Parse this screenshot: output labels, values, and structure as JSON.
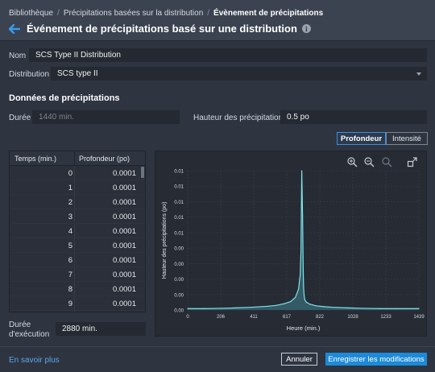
{
  "breadcrumb": {
    "items": [
      "Bibliothèque",
      "Précipitations basées sur la distribution"
    ],
    "current": "Évènement de précipitations"
  },
  "header": {
    "title": "Événement de précipitations basé sur une distribution"
  },
  "form": {
    "name_label": "Nom",
    "name_value": "SCS Type II Distribution",
    "distribution_label": "Distribution",
    "distribution_value": "SCS type II"
  },
  "section": {
    "title": "Données de précipitations"
  },
  "duration": {
    "label": "Durée",
    "value": "1440 min."
  },
  "depth": {
    "label": "Hauteur des précipitations",
    "value": "0.5 po"
  },
  "toggle": {
    "depth": "Profondeur",
    "intensity": "Intensité"
  },
  "table": {
    "headers": [
      "Temps (min.)",
      "Profondeur (po)"
    ],
    "rows": [
      [
        "0",
        "0.0001"
      ],
      [
        "1",
        "0.0001"
      ],
      [
        "2",
        "0.0001"
      ],
      [
        "3",
        "0.0001"
      ],
      [
        "4",
        "0.0001"
      ],
      [
        "5",
        "0.0001"
      ],
      [
        "6",
        "0.0001"
      ],
      [
        "7",
        "0.0001"
      ],
      [
        "8",
        "0.0001"
      ],
      [
        "9",
        "0.0001"
      ]
    ]
  },
  "execution": {
    "label_line1": "Durée",
    "label_line2": "d'exécution",
    "value": "2880 min."
  },
  "chart_data": {
    "type": "area",
    "xlabel": "Heure (min.)",
    "ylabel": "Hauteur des précipitations (po)",
    "xlim": [
      0,
      1439
    ],
    "ylim": [
      0,
      0.01
    ],
    "x_ticks": [
      "0",
      "206",
      "411",
      "617",
      "822",
      "1028",
      "1233",
      "1439"
    ],
    "y_ticks": [
      "0.00",
      "0.00",
      "0.00",
      "0.00",
      "0.00",
      "0.01",
      "0.01",
      "0.01",
      "0.01",
      "0.01"
    ],
    "line_color": "#7fe3e8",
    "fill_color": "#3f8290",
    "series": [
      {
        "x": [
          0,
          100,
          200,
          300,
          400,
          500,
          550,
          600,
          640,
          670,
          690,
          700,
          705,
          710,
          715,
          718,
          720,
          722,
          725,
          730,
          740,
          760,
          800,
          850,
          900,
          1000,
          1100,
          1200,
          1300,
          1439
        ],
        "values": [
          0.0001,
          0.0001,
          0.00012,
          0.00015,
          0.0002,
          0.00027,
          0.00033,
          0.00045,
          0.0006,
          0.0009,
          0.0015,
          0.0025,
          0.0042,
          0.01,
          0.0068,
          0.0038,
          0.0022,
          0.0015,
          0.001,
          0.0007,
          0.00055,
          0.00042,
          0.0003,
          0.00024,
          0.0002,
          0.00015,
          0.00012,
          0.0001,
          0.0001,
          0.0001
        ]
      }
    ]
  },
  "footer": {
    "learn_more": "En savoir plus",
    "cancel": "Annuler",
    "save": "Enregistrer les modifications"
  },
  "colors": {
    "accent": "#1c8ad8",
    "link": "#5aa9e6",
    "background": "#2e3440"
  },
  "icons": [
    "back-arrow-icon",
    "info-icon",
    "zoom-in-icon",
    "zoom-out-icon",
    "zoom-reset-icon",
    "expand-icon",
    "chevron-down-icon"
  ]
}
